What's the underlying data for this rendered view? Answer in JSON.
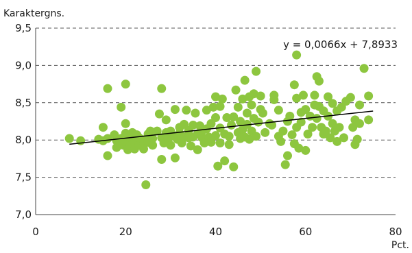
{
  "chart_data": {
    "type": "scatter",
    "ylabel": "Karaktergns.",
    "xlabel": "Pct.",
    "xlim": [
      0,
      80
    ],
    "ylim": [
      7.0,
      9.5
    ],
    "xticks": [
      "0",
      "20",
      "40",
      "60",
      "80"
    ],
    "yticks": [
      "7,0",
      "7,5",
      "8,0",
      "8,5",
      "9,0",
      "9,5"
    ],
    "grid": "horizontal dashed",
    "marker_color": "#8dc63f",
    "trendline": {
      "label": "y = 0,0066x + 7,8933",
      "slope": 0.0066,
      "intercept": 7.8933,
      "x_range": [
        7.5,
        75
      ],
      "color": "#000000"
    },
    "points": [
      [
        7.5,
        8.02
      ],
      [
        10,
        7.99
      ],
      [
        14,
        8.01
      ],
      [
        15,
        8.17
      ],
      [
        15,
        7.99
      ],
      [
        16,
        8.02
      ],
      [
        16,
        8.69
      ],
      [
        16,
        7.79
      ],
      [
        17.5,
        8.07
      ],
      [
        18,
        7.99
      ],
      [
        18,
        7.9
      ],
      [
        19,
        8.44
      ],
      [
        19,
        8.02
      ],
      [
        19.5,
        7.93
      ],
      [
        20,
        8.75
      ],
      [
        20,
        8.22
      ],
      [
        20,
        8.09
      ],
      [
        20,
        7.98
      ],
      [
        20.5,
        7.87
      ],
      [
        21,
        8.03
      ],
      [
        21,
        7.92
      ],
      [
        21.5,
        8.1
      ],
      [
        22,
        7.97
      ],
      [
        22,
        7.88
      ],
      [
        22.5,
        8.07
      ],
      [
        23,
        7.93
      ],
      [
        23,
        8.03
      ],
      [
        23.5,
        8.01
      ],
      [
        24,
        7.95
      ],
      [
        24,
        7.88
      ],
      [
        24.5,
        7.4
      ],
      [
        25,
        8.08
      ],
      [
        25,
        7.97
      ],
      [
        25,
        8.03
      ],
      [
        25.5,
        8.12
      ],
      [
        26,
        8.02
      ],
      [
        26,
        7.93
      ],
      [
        27,
        8.12
      ],
      [
        27.5,
        8.35
      ],
      [
        28,
        8.69
      ],
      [
        28,
        7.74
      ],
      [
        28,
        8.03
      ],
      [
        28.5,
        7.96
      ],
      [
        29,
        8.1
      ],
      [
        29,
        8.27
      ],
      [
        29.5,
        8.02
      ],
      [
        30,
        8.12
      ],
      [
        30,
        7.93
      ],
      [
        30.5,
        8.05
      ],
      [
        31,
        7.76
      ],
      [
        31,
        8.41
      ],
      [
        31.5,
        8.01
      ],
      [
        32,
        8.17
      ],
      [
        32,
        8.09
      ],
      [
        32.5,
        7.96
      ],
      [
        33,
        8.04
      ],
      [
        33,
        8.21
      ],
      [
        33.5,
        8.4
      ],
      [
        34,
        8.03
      ],
      [
        34,
        8.13
      ],
      [
        34.5,
        7.92
      ],
      [
        35,
        8.2
      ],
      [
        35,
        8.04
      ],
      [
        35.5,
        8.36
      ],
      [
        36,
        7.87
      ],
      [
        36,
        8.08
      ],
      [
        36.5,
        8.19
      ],
      [
        37,
        8.03
      ],
      [
        37,
        8.12
      ],
      [
        37.5,
        7.96
      ],
      [
        38,
        8.4
      ],
      [
        38,
        8.15
      ],
      [
        38.5,
        8.04
      ],
      [
        39,
        7.97
      ],
      [
        39,
        8.22
      ],
      [
        39.5,
        8.44
      ],
      [
        40,
        8.58
      ],
      [
        40,
        8.06
      ],
      [
        40,
        8.3
      ],
      [
        40.5,
        7.65
      ],
      [
        41,
        7.96
      ],
      [
        41,
        8.45
      ],
      [
        41,
        8.16
      ],
      [
        41.5,
        8.55
      ],
      [
        42,
        7.72
      ],
      [
        42,
        8.08
      ],
      [
        42.5,
        8.3
      ],
      [
        43,
        7.94
      ],
      [
        43,
        8.05
      ],
      [
        43.5,
        8.2
      ],
      [
        44,
        7.64
      ],
      [
        44,
        8.31
      ],
      [
        44.5,
        8.67
      ],
      [
        45,
        8.44
      ],
      [
        45,
        8.1
      ],
      [
        45.5,
        8.02
      ],
      [
        45.5,
        8.25
      ],
      [
        46,
        8.55
      ],
      [
        46,
        8.14
      ],
      [
        46.5,
        8.8
      ],
      [
        46.5,
        8.04
      ],
      [
        47,
        8.36
      ],
      [
        47,
        8.21
      ],
      [
        47.5,
        8.58
      ],
      [
        47.5,
        8.01
      ],
      [
        48,
        8.47
      ],
      [
        48,
        8.12
      ],
      [
        48.5,
        8.62
      ],
      [
        48.5,
        8.29
      ],
      [
        49,
        8.92
      ],
      [
        49,
        8.05
      ],
      [
        49.5,
        8.24
      ],
      [
        50,
        8.41
      ],
      [
        50,
        8.59
      ],
      [
        50.5,
        8.36
      ],
      [
        51,
        8.1
      ],
      [
        52,
        8.22
      ],
      [
        52.5,
        8.2
      ],
      [
        53,
        8.54
      ],
      [
        53,
        8.6
      ],
      [
        54,
        8.4
      ],
      [
        54,
        8.05
      ],
      [
        54.5,
        7.98
      ],
      [
        55,
        8.12
      ],
      [
        55.5,
        7.67
      ],
      [
        56,
        8.25
      ],
      [
        56,
        7.79
      ],
      [
        56.5,
        8.32
      ],
      [
        57,
        8.07
      ],
      [
        57.5,
        8.74
      ],
      [
        57.5,
        7.95
      ],
      [
        58,
        9.14
      ],
      [
        58,
        8.56
      ],
      [
        58,
        8.17
      ],
      [
        58.5,
        7.89
      ],
      [
        59,
        8.37
      ],
      [
        59,
        8.24
      ],
      [
        59.5,
        8.6
      ],
      [
        60,
        7.86
      ],
      [
        60,
        8.41
      ],
      [
        60.5,
        8.08
      ],
      [
        61,
        8.32
      ],
      [
        61.5,
        8.17
      ],
      [
        62,
        8.6
      ],
      [
        62,
        8.47
      ],
      [
        62.5,
        8.85
      ],
      [
        62.5,
        8.29
      ],
      [
        63,
        8.79
      ],
      [
        63,
        8.45
      ],
      [
        63.5,
        8.17
      ],
      [
        64,
        8.39
      ],
      [
        64,
        8.08
      ],
      [
        64.5,
        8.12
      ],
      [
        65,
        8.58
      ],
      [
        65,
        8.32
      ],
      [
        65.5,
        8.03
      ],
      [
        66,
        8.49
      ],
      [
        66,
        8.22
      ],
      [
        66.5,
        8.12
      ],
      [
        67,
        8.39
      ],
      [
        67,
        7.98
      ],
      [
        67.5,
        8.17
      ],
      [
        68,
        8.44
      ],
      [
        68.5,
        8.03
      ],
      [
        69,
        8.52
      ],
      [
        70,
        8.57
      ],
      [
        70.5,
        8.17
      ],
      [
        71,
        7.94
      ],
      [
        71,
        8.27
      ],
      [
        71.5,
        8.01
      ],
      [
        72,
        8.47
      ],
      [
        72,
        8.22
      ],
      [
        73,
        8.96
      ],
      [
        74,
        8.59
      ],
      [
        74,
        8.27
      ]
    ]
  }
}
